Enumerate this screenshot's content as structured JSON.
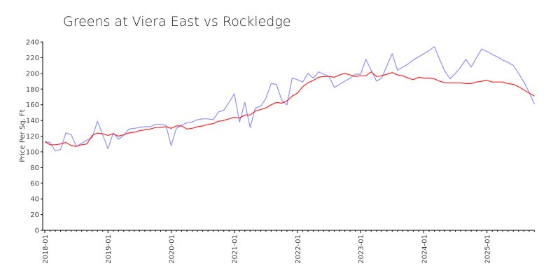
{
  "chart_data": {
    "type": "line",
    "title": "Greens at Viera East vs Rockledge",
    "xlabel": "",
    "ylabel": "Price Per Sq. Ft",
    "ylim": [
      0,
      240
    ],
    "yticks": [
      0,
      20,
      40,
      60,
      80,
      100,
      120,
      140,
      160,
      180,
      200,
      220,
      240
    ],
    "x_start": "2018-01",
    "x_ticks": [
      "2018-01",
      "2019-01",
      "2020-01",
      "2021-01",
      "2022-01",
      "2023-01",
      "2024-01",
      "2025-01"
    ],
    "grid": false,
    "legend": "none",
    "series": [
      {
        "name": "Greens at Viera East",
        "color": "#8f8fff",
        "values": [
          113,
          112,
          101,
          103,
          124,
          122,
          107,
          111,
          115,
          118,
          139,
          122,
          104,
          124,
          116,
          121,
          129,
          130,
          131,
          132,
          132,
          135,
          135,
          134,
          108,
          130,
          134,
          137,
          138,
          141,
          142,
          142,
          141,
          151,
          153,
          163,
          174,
          138,
          163,
          131,
          156,
          158,
          168,
          187,
          186,
          166,
          160,
          194,
          192,
          189,
          200,
          194,
          202,
          199,
          196,
          182,
          186,
          190,
          194,
          199,
          199,
          218,
          204,
          190,
          194,
          210,
          225,
          204,
          208,
          212,
          217,
          221,
          225,
          229,
          234,
          218,
          203,
          193,
          200,
          208,
          218,
          208,
          220,
          231,
          228,
          224,
          221,
          217,
          214,
          210,
          200,
          189,
          176,
          161
        ]
      },
      {
        "name": "Rockledge",
        "color": "#ff2020",
        "values": [
          113,
          109,
          109,
          110,
          112,
          108,
          107,
          109,
          110,
          121,
          124,
          123,
          121,
          123,
          120,
          122,
          124,
          125,
          127,
          128,
          129,
          131,
          131,
          132,
          130,
          133,
          133,
          129,
          130,
          132,
          133,
          135,
          136,
          139,
          140,
          142,
          144,
          143,
          147,
          147,
          152,
          154,
          156,
          160,
          163,
          162,
          165,
          171,
          175,
          183,
          188,
          191,
          195,
          196,
          196,
          195,
          198,
          200,
          198,
          196,
          197,
          197,
          202,
          196,
          197,
          199,
          201,
          198,
          197,
          194,
          192,
          195,
          194,
          194,
          193,
          190,
          188,
          188,
          188,
          188,
          187,
          187,
          189,
          190,
          191,
          189,
          189,
          189,
          187,
          186,
          183,
          179,
          175,
          171
        ]
      }
    ]
  }
}
